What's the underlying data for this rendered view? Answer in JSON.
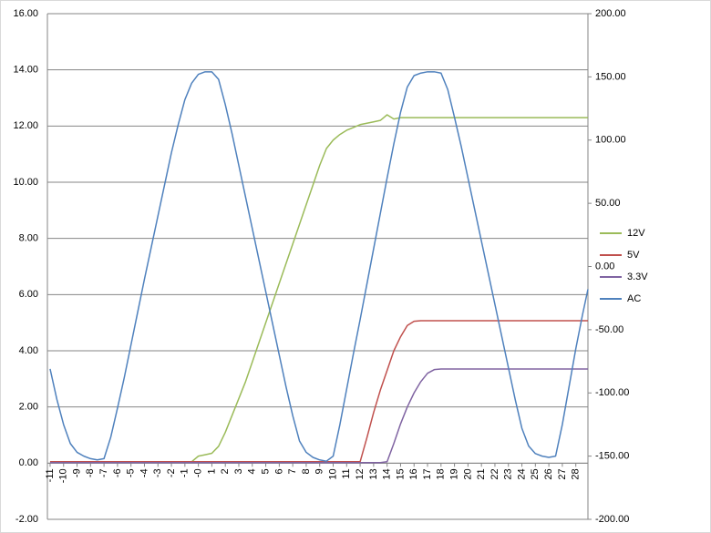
{
  "chart_data": {
    "type": "line",
    "x": [
      -11,
      -10.5,
      -10,
      -9.5,
      -9,
      -8.5,
      -8,
      -7.5,
      -7,
      -6.5,
      -6,
      -5.5,
      -5,
      -4.5,
      -4,
      -3.5,
      -3,
      -2.5,
      -2,
      -1.5,
      -1,
      -0.5,
      0,
      0.5,
      1,
      1.5,
      2,
      2.5,
      3,
      3.5,
      4,
      4.5,
      5,
      5.5,
      6,
      6.5,
      7,
      7.5,
      8,
      8.5,
      9,
      9.5,
      10,
      10.5,
      11,
      11.5,
      12,
      12.5,
      13,
      13.5,
      14,
      14.5,
      15,
      15.5,
      16,
      16.5,
      17,
      17.5,
      18,
      18.5,
      19,
      19.5,
      20,
      20.5,
      21,
      21.5,
      22,
      22.5,
      23,
      23.5,
      24,
      24.5,
      25,
      25.5,
      26,
      26.5,
      27,
      27.5,
      28,
      28.5,
      28.9
    ],
    "xlim": [
      -11.2,
      28.9
    ],
    "xticks": [
      -11,
      -10,
      -9,
      -8,
      -7,
      -6,
      -5,
      -4,
      -3,
      -2,
      -1,
      {
        "value": 0,
        "label": "-0"
      },
      1,
      2,
      3,
      4,
      5,
      6,
      7,
      8,
      9,
      10,
      11,
      12,
      13,
      14,
      15,
      16,
      17,
      18,
      19,
      20,
      21,
      22,
      23,
      24,
      25,
      26,
      27,
      28
    ],
    "ylim": [
      -2,
      16
    ],
    "yticks": [
      {
        "value": -2,
        "label": "-2.00"
      },
      {
        "value": 0,
        "label": "0.00"
      },
      {
        "value": 2,
        "label": "2.00"
      },
      {
        "value": 4,
        "label": "4.00"
      },
      {
        "value": 6,
        "label": "6.00"
      },
      {
        "value": 8,
        "label": "8.00"
      },
      {
        "value": 10,
        "label": "10.00"
      },
      {
        "value": 12,
        "label": "12.00"
      },
      {
        "value": 14,
        "label": "14.00"
      },
      {
        "value": 16,
        "label": "16.00"
      }
    ],
    "y2lim": [
      -200,
      200
    ],
    "y2ticks": [
      {
        "value": -200,
        "label": "-200.00"
      },
      {
        "value": -150,
        "label": "-150.00"
      },
      {
        "value": -100,
        "label": "-100.00"
      },
      {
        "value": -50,
        "label": "-50.00"
      },
      {
        "value": 0,
        "label": "0.00"
      },
      {
        "value": 50,
        "label": "50.00"
      },
      {
        "value": 100,
        "label": "100.00"
      },
      {
        "value": 150,
        "label": "150.00"
      },
      {
        "value": 200,
        "label": "200.00"
      }
    ],
    "grid": true,
    "legend": "right",
    "series": [
      {
        "name": "12V",
        "color": "#9bbb59",
        "values": [
          0.05,
          0.05,
          0.05,
          0.05,
          0.05,
          0.05,
          0.05,
          0.05,
          0.05,
          0.05,
          0.05,
          0.05,
          0.05,
          0.05,
          0.05,
          0.05,
          0.05,
          0.05,
          0.05,
          0.05,
          0.05,
          0.05,
          0.25,
          0.3,
          0.35,
          0.6,
          1.1,
          1.7,
          2.3,
          2.9,
          3.6,
          4.3,
          5.0,
          5.7,
          6.4,
          7.1,
          7.8,
          8.5,
          9.2,
          9.9,
          10.6,
          11.2,
          11.5,
          11.7,
          11.85,
          11.95,
          12.05,
          12.1,
          12.15,
          12.2,
          12.4,
          12.25,
          12.3,
          12.3,
          12.3,
          12.3,
          12.3,
          12.3,
          12.3,
          12.3,
          12.3,
          12.3,
          12.3,
          12.3,
          12.3,
          12.3,
          12.3,
          12.3,
          12.3,
          12.3,
          12.3,
          12.3,
          12.3,
          12.3,
          12.3,
          12.3,
          12.3,
          12.3,
          12.3,
          12.3,
          12.3
        ]
      },
      {
        "name": "5V",
        "color": "#c0504d",
        "values": [
          0.05,
          0.05,
          0.05,
          0.05,
          0.05,
          0.05,
          0.05,
          0.05,
          0.05,
          0.05,
          0.05,
          0.05,
          0.05,
          0.05,
          0.05,
          0.05,
          0.05,
          0.05,
          0.05,
          0.05,
          0.05,
          0.05,
          0.05,
          0.05,
          0.05,
          0.05,
          0.05,
          0.05,
          0.05,
          0.05,
          0.05,
          0.05,
          0.05,
          0.05,
          0.05,
          0.05,
          0.05,
          0.05,
          0.05,
          0.05,
          0.05,
          0.05,
          0.05,
          0.05,
          0.05,
          0.05,
          0.05,
          0.9,
          1.8,
          2.6,
          3.3,
          4.0,
          4.5,
          4.9,
          5.05,
          5.07,
          5.07,
          5.07,
          5.07,
          5.07,
          5.07,
          5.07,
          5.07,
          5.07,
          5.07,
          5.07,
          5.07,
          5.07,
          5.07,
          5.07,
          5.07,
          5.07,
          5.07,
          5.07,
          5.07,
          5.07,
          5.07,
          5.07,
          5.07,
          5.07,
          5.07
        ]
      },
      {
        "name": "3.3V",
        "color": "#8064a2",
        "values": [
          0.02,
          0.02,
          0.02,
          0.02,
          0.02,
          0.02,
          0.02,
          0.02,
          0.02,
          0.02,
          0.02,
          0.02,
          0.02,
          0.02,
          0.02,
          0.02,
          0.02,
          0.02,
          0.02,
          0.02,
          0.02,
          0.02,
          0.02,
          0.02,
          0.02,
          0.02,
          0.02,
          0.02,
          0.02,
          0.02,
          0.02,
          0.02,
          0.02,
          0.02,
          0.02,
          0.02,
          0.02,
          0.02,
          0.02,
          0.02,
          0.02,
          0.02,
          0.02,
          0.02,
          0.02,
          0.02,
          0.02,
          0.02,
          0.02,
          0.02,
          0.05,
          0.7,
          1.4,
          2.0,
          2.5,
          2.9,
          3.2,
          3.33,
          3.35,
          3.35,
          3.35,
          3.35,
          3.35,
          3.35,
          3.35,
          3.35,
          3.35,
          3.35,
          3.35,
          3.35,
          3.35,
          3.35,
          3.35,
          3.35,
          3.35,
          3.35,
          3.35,
          3.35,
          3.35,
          3.35,
          3.35
        ]
      },
      {
        "name": "AC",
        "color": "#4f81bd",
        "axis": "y2",
        "values": [
          -81,
          -105,
          -125,
          -140,
          -147,
          -150,
          -152,
          -153,
          -152,
          -135,
          -112,
          -88,
          -62,
          -36,
          -10,
          15,
          40,
          65,
          90,
          112,
          132,
          145,
          152,
          154,
          154,
          148,
          128,
          105,
          80,
          55,
          30,
          5,
          -20,
          -45,
          -70,
          -95,
          -118,
          -138,
          -147,
          -151,
          -153,
          -154,
          -150,
          -125,
          -97,
          -69,
          -42,
          -14,
          14,
          42,
          70,
          97,
          122,
          142,
          151,
          153,
          154,
          154,
          153,
          140,
          118,
          95,
          70,
          45,
          20,
          -5,
          -30,
          -55,
          -80,
          -105,
          -128,
          -142,
          -148,
          -150,
          -151,
          -150,
          -125,
          -95,
          -65,
          -38,
          -18
        ]
      }
    ]
  }
}
